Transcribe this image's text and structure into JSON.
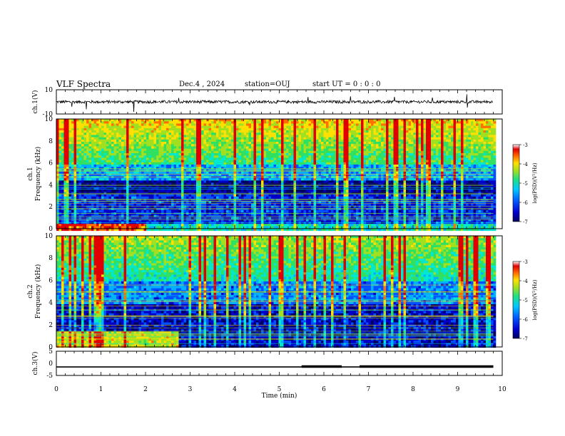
{
  "header": {
    "title": "VLF Spectra",
    "date": "Dec.4 , 2024",
    "station": "station=OUJ",
    "start": "start UT = 0 : 0 : 0"
  },
  "chart_data": [
    {
      "type": "line",
      "panel": "ch1-waveform",
      "ylabel": "ch.1(V)",
      "ylim": [
        -10,
        10
      ],
      "y_ticks": [
        "10",
        "-10"
      ],
      "x_range_min": [
        0,
        10
      ],
      "data_end_min": 9.8,
      "baseline": 0,
      "noise_amplitude": 1.2
    },
    {
      "type": "heatmap",
      "panel": "ch1-spectrogram",
      "ylabel": "ch.1 Frequency (kHz)",
      "ylim": [
        0,
        10
      ],
      "y_ticks": [
        "0",
        "2",
        "4",
        "6",
        "8",
        "10"
      ],
      "x_range_min": [
        0,
        10
      ],
      "data_end_min": 9.8,
      "colorbar": {
        "label": "log(PSD)(V²/Hz)",
        "range": [
          -7,
          -3
        ],
        "ticks": [
          "-3",
          "-4",
          "-5",
          "-6",
          "-7"
        ]
      },
      "colors": [
        "#000060",
        "#0000c8",
        "#0050ff",
        "#00b0ff",
        "#00e8d0",
        "#30e060",
        "#a0e020",
        "#ffe000",
        "#ff7000",
        "#e00000",
        "#ffffff"
      ]
    },
    {
      "type": "heatmap",
      "panel": "ch2-spectrogram",
      "ylabel": "ch.2 Frequency (kHz)",
      "ylim": [
        0,
        10
      ],
      "y_ticks": [
        "0",
        "2",
        "4",
        "6",
        "8",
        "10"
      ],
      "x_range_min": [
        0,
        10
      ],
      "data_end_min": 9.8,
      "colorbar": {
        "label": "log(PSD)(V²/Hz)",
        "range": [
          -7,
          -3
        ],
        "ticks": [
          "-3",
          "-4",
          "-5",
          "-6",
          "-7"
        ]
      }
    },
    {
      "type": "line",
      "panel": "ch3-waveform",
      "ylabel": "ch.3(V)",
      "ylim": [
        -5,
        5
      ],
      "y_ticks": [
        "5",
        "0",
        "-5"
      ],
      "x_range_min": [
        0,
        10
      ],
      "xlabel": "Time (min)",
      "x_ticks": [
        "0",
        "1",
        "2",
        "3",
        "4",
        "5",
        "6",
        "7",
        "8",
        "9",
        "10"
      ],
      "baseline": -1.5,
      "thick_segments_min": [
        [
          5.5,
          6.4
        ],
        [
          6.8,
          9.8
        ]
      ]
    }
  ]
}
